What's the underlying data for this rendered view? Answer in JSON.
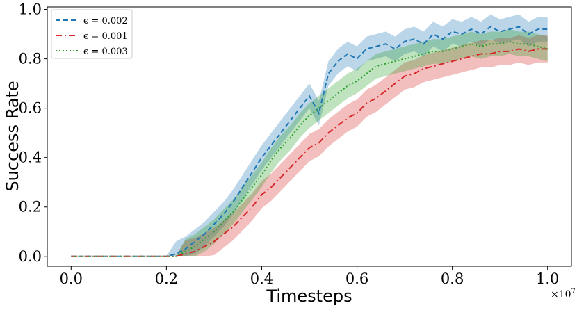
{
  "chart_data": {
    "type": "line",
    "title": "",
    "xlabel": "Timesteps",
    "ylabel": "Success Rate",
    "x_multiplier_label": "×10",
    "x_multiplier_exp": "7",
    "xlim": [
      -0.05,
      1.05
    ],
    "ylim": [
      -0.04,
      1.01
    ],
    "xticks": [
      0.0,
      0.2,
      0.4,
      0.6,
      0.8,
      1.0
    ],
    "xtick_labels": [
      "0.0",
      "0.2",
      "0.4",
      "0.6",
      "0.8",
      "1.0"
    ],
    "yticks": [
      0.0,
      0.2,
      0.4,
      0.6,
      0.8,
      1.0
    ],
    "ytick_labels": [
      "0.0",
      "0.2",
      "0.4",
      "0.6",
      "0.8",
      "1.0"
    ],
    "grid": false,
    "legend_position": "top-left",
    "series": [
      {
        "name": "ϵ = 0.002",
        "color": "#1f77b4",
        "linestyle": "dashed",
        "x": [
          0.0,
          0.2,
          0.22,
          0.24,
          0.26,
          0.28,
          0.3,
          0.32,
          0.34,
          0.36,
          0.38,
          0.4,
          0.42,
          0.44,
          0.46,
          0.48,
          0.5,
          0.52,
          0.54,
          0.56,
          0.58,
          0.6,
          0.62,
          0.64,
          0.66,
          0.68,
          0.7,
          0.72,
          0.74,
          0.76,
          0.78,
          0.8,
          0.82,
          0.84,
          0.86,
          0.88,
          0.9,
          0.92,
          0.94,
          0.96,
          0.98,
          1.0
        ],
        "y": [
          0.0,
          0.0,
          0.01,
          0.03,
          0.06,
          0.09,
          0.13,
          0.17,
          0.22,
          0.28,
          0.34,
          0.4,
          0.45,
          0.5,
          0.55,
          0.6,
          0.65,
          0.58,
          0.74,
          0.79,
          0.82,
          0.8,
          0.84,
          0.85,
          0.86,
          0.84,
          0.87,
          0.88,
          0.86,
          0.9,
          0.88,
          0.91,
          0.9,
          0.92,
          0.9,
          0.93,
          0.91,
          0.92,
          0.93,
          0.9,
          0.92,
          0.92
        ],
        "band": 0.05
      },
      {
        "name": "ϵ = 0.001",
        "color": "#d62728",
        "linestyle": "dashdot",
        "x": [
          0.0,
          0.2,
          0.22,
          0.24,
          0.26,
          0.28,
          0.3,
          0.32,
          0.34,
          0.36,
          0.38,
          0.4,
          0.42,
          0.44,
          0.46,
          0.48,
          0.5,
          0.52,
          0.54,
          0.56,
          0.58,
          0.6,
          0.62,
          0.64,
          0.66,
          0.68,
          0.7,
          0.72,
          0.74,
          0.76,
          0.78,
          0.8,
          0.82,
          0.84,
          0.86,
          0.88,
          0.9,
          0.92,
          0.94,
          0.96,
          0.98,
          1.0
        ],
        "y": [
          0.0,
          0.0,
          0.0,
          0.01,
          0.02,
          0.04,
          0.06,
          0.09,
          0.12,
          0.16,
          0.2,
          0.25,
          0.28,
          0.32,
          0.36,
          0.4,
          0.44,
          0.46,
          0.5,
          0.53,
          0.56,
          0.58,
          0.62,
          0.64,
          0.67,
          0.7,
          0.73,
          0.74,
          0.76,
          0.77,
          0.78,
          0.79,
          0.8,
          0.81,
          0.82,
          0.82,
          0.83,
          0.83,
          0.84,
          0.83,
          0.84,
          0.84
        ],
        "band": 0.055
      },
      {
        "name": "ϵ = 0.003",
        "color": "#2ca02c",
        "linestyle": "dotted",
        "x": [
          0.0,
          0.2,
          0.22,
          0.24,
          0.26,
          0.28,
          0.3,
          0.32,
          0.34,
          0.36,
          0.38,
          0.4,
          0.42,
          0.44,
          0.46,
          0.48,
          0.5,
          0.52,
          0.54,
          0.56,
          0.58,
          0.6,
          0.62,
          0.64,
          0.66,
          0.68,
          0.7,
          0.72,
          0.74,
          0.76,
          0.78,
          0.8,
          0.82,
          0.84,
          0.86,
          0.88,
          0.9,
          0.92,
          0.94,
          0.96,
          0.98,
          1.0
        ],
        "y": [
          0.0,
          0.0,
          0.0,
          0.02,
          0.04,
          0.07,
          0.1,
          0.14,
          0.18,
          0.23,
          0.28,
          0.33,
          0.39,
          0.44,
          0.48,
          0.53,
          0.57,
          0.6,
          0.63,
          0.66,
          0.69,
          0.71,
          0.74,
          0.77,
          0.78,
          0.79,
          0.8,
          0.81,
          0.82,
          0.83,
          0.83,
          0.84,
          0.85,
          0.86,
          0.85,
          0.86,
          0.86,
          0.87,
          0.86,
          0.86,
          0.85,
          0.84
        ],
        "band": 0.05
      }
    ]
  }
}
